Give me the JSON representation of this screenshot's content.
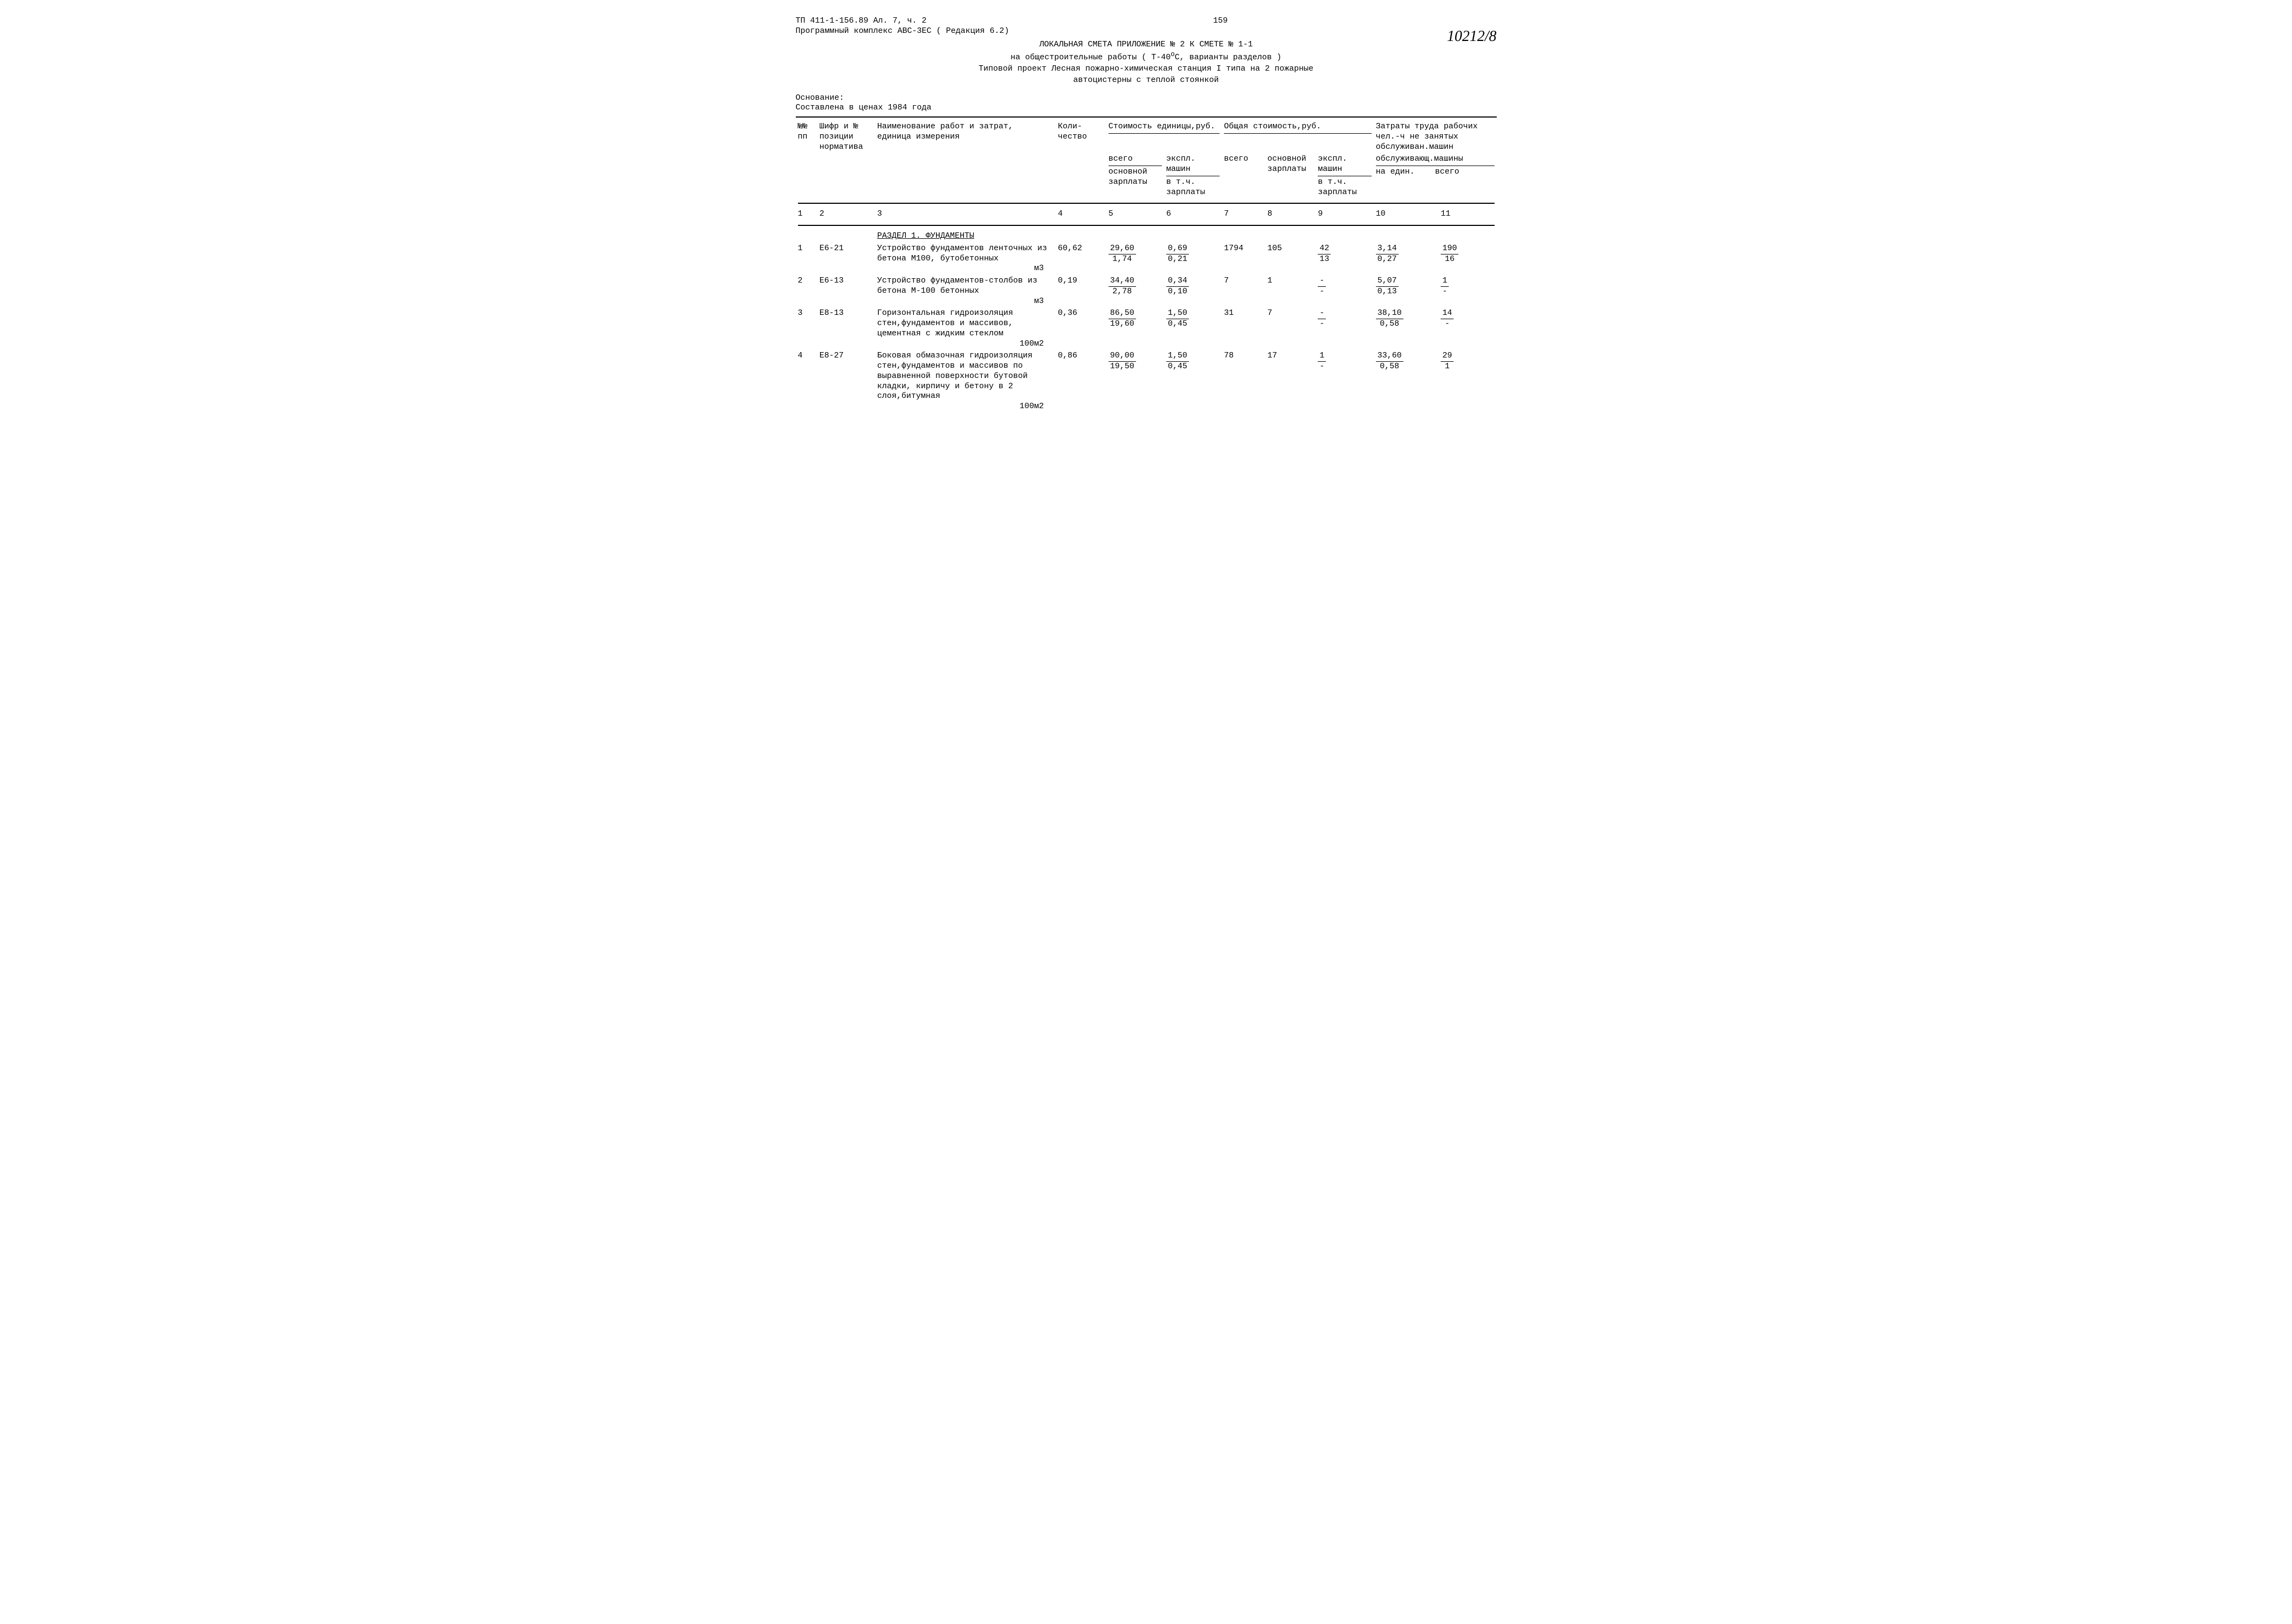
{
  "header": {
    "code": "ТП 411-1-156.89  Ал. 7, ч. 2",
    "program": "Программный комплекс АВС-3ЕС ( Редакция 6.2)",
    "page_number": "159",
    "handwritten": "10212/8",
    "title1": "ЛОКАЛЬНАЯ СМЕТА   ПРИЛОЖЕНИЕ № 2 К СМЕТЕ № 1-1",
    "title2_pre": "на общестроительные работы ( Т-40",
    "title2_sup": "о",
    "title2_post": "С, варианты разделов )",
    "title3a": "Типовой проект Лесная пожарно-химическая станция I типа на 2 пожарные",
    "title3b": "автоцистерны с теплой стоянкой",
    "basis_label": "Основание:",
    "basis_text": "Составлена в ценах 1984 года"
  },
  "columns": {
    "c1": "№№\nпп",
    "c2": "Шифр и №\nпозиции\nнорматива",
    "c3": "Наименование работ и затрат,\nединица измерения",
    "c4": "Коли-\nчество",
    "grp56": "Стоимость единицы,руб.",
    "grp789": "Общая стоимость,руб.",
    "c5a": "всего",
    "c5b": "основной\nзарплаты",
    "c6a": "экспл.\nмашин",
    "c6b": "в т.ч.\nзарплаты",
    "c7": "всего",
    "c8": "основной\nзарплаты",
    "c9a": "экспл.\nмашин",
    "c9b": "в т.ч.\nзарплаты",
    "grp1011a": "Затраты труда рабочих",
    "grp1011b": "чел.-ч не занятых\nобслуживан.машин",
    "grp1011c": "обслуживающ.машины",
    "c10": "на един.",
    "c11": "всего"
  },
  "numrow": {
    "n1": "1",
    "n2": "2",
    "n3": "3",
    "n4": "4",
    "n5": "5",
    "n6": "6",
    "n7": "7",
    "n8": "8",
    "n9": "9",
    "n10": "10",
    "n11": "11"
  },
  "section1": "РАЗДЕЛ 1. ФУНДАМЕНТЫ",
  "rows": [
    {
      "n": "1",
      "code": "Е6-21",
      "name": "Устройство фундаментов ленточных из бетона М100, бутобетонных",
      "unit": "м3",
      "qty": "60,62",
      "c5t": "29,60",
      "c5b": "1,74",
      "c6t": "0,69",
      "c6b": "0,21",
      "c7": "1794",
      "c8": "105",
      "c9t": "42",
      "c9b": "13",
      "c10t": "3,14",
      "c10b": "0,27",
      "c11t": "190",
      "c11b": "16"
    },
    {
      "n": "2",
      "code": "Е6-13",
      "name": "Устройство фундаментов-столбов из бетона М-100 бетонных",
      "unit": "м3",
      "qty": "0,19",
      "c5t": "34,40",
      "c5b": "2,78",
      "c6t": "0,34",
      "c6b": "0,10",
      "c7": "7",
      "c8": "1",
      "c9t": "-",
      "c9b": "-",
      "c10t": "5,07",
      "c10b": "0,13",
      "c11t": "1",
      "c11b": "-"
    },
    {
      "n": "3",
      "code": "Е8-13",
      "name": "Горизонтальная гидроизоляция стен,фундаментов и массивов, цементная с жидким стеклом",
      "unit": "100м2",
      "qty": "0,36",
      "c5t": "86,50",
      "c5b": "19,60",
      "c6t": "1,50",
      "c6b": "0,45",
      "c7": "31",
      "c8": "7",
      "c9t": "-",
      "c9b": "-",
      "c10t": "38,10",
      "c10b": "0,58",
      "c11t": "14",
      "c11b": "-"
    },
    {
      "n": "4",
      "code": "Е8-27",
      "name": "Боковая обмазочная гидроизоляция стен,фундаментов и массивов по выравненной поверхности бутовой кладки, кирпичу и бетону в 2 слоя,битумная",
      "unit": "100м2",
      "qty": "0,86",
      "c5t": "90,00",
      "c5b": "19,50",
      "c6t": "1,50",
      "c6b": "0,45",
      "c7": "78",
      "c8": "17",
      "c9t": "1",
      "c9b": "-",
      "c10t": "33,60",
      "c10b": "0,58",
      "c11t": "29",
      "c11b": "1"
    }
  ]
}
